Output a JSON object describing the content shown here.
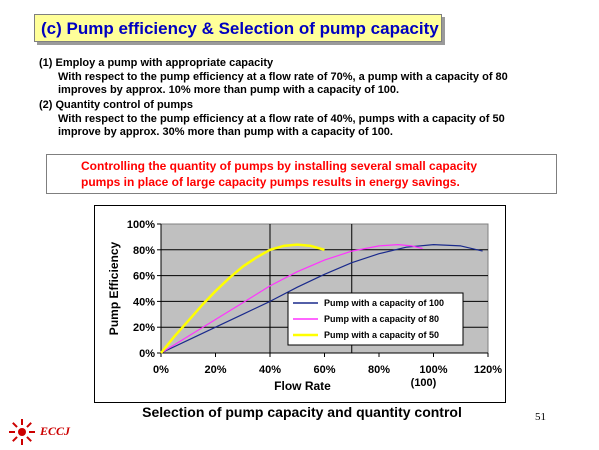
{
  "header": {
    "title": "(c) Pump efficiency & Selection of pump capacity"
  },
  "body_text": {
    "item1_heading": "(1) Employ a pump with appropriate capacity",
    "item1_line1": "With respect to the pump efficiency at a flow rate of 70%, a pump with a capacity of 80",
    "item1_line2": "improves by approx. 10% more than pump with a capacity of 100.",
    "item2_heading": "(2) Quantity control of pumps",
    "item2_line1": "With respect to the pump efficiency at a flow rate of 40%,  pumps with a capacity of 50",
    "item2_line2": "improve by approx. 30% more than pump with a capacity of 100."
  },
  "callout": {
    "line1": "Controlling the quantity of pumps by installing several small capacity",
    "line2": "pumps in place of large capacity pumps results in energy savings."
  },
  "chart_data": {
    "type": "line",
    "title": "",
    "xlabel": "Flow Rate",
    "ylabel": "Pump Efficiency",
    "xlim": [
      0,
      120
    ],
    "ylim": [
      0,
      100
    ],
    "x_ticks": [
      "0%",
      "20%",
      "40%",
      "60%",
      "80%",
      "100%",
      "120%"
    ],
    "x_tick_values": [
      0,
      20,
      40,
      60,
      80,
      100,
      120
    ],
    "x_extra_label": "(100)",
    "y_ticks": [
      "0%",
      "20%",
      "40%",
      "60%",
      "80%",
      "100%"
    ],
    "y_tick_values": [
      0,
      20,
      40,
      60,
      80,
      100
    ],
    "grid": "horizontal",
    "plot_background": "#c0c0c0",
    "vertical_markers": [
      40,
      70
    ],
    "legend_position": "lower-right",
    "series": [
      {
        "name": "Pump with a capacity of 100",
        "color": "#1a2a8c",
        "points": [
          [
            0,
            0
          ],
          [
            10,
            10
          ],
          [
            20,
            20
          ],
          [
            30,
            30
          ],
          [
            40,
            40
          ],
          [
            50,
            51
          ],
          [
            60,
            61
          ],
          [
            70,
            70
          ],
          [
            80,
            77
          ],
          [
            90,
            82
          ],
          [
            100,
            84
          ],
          [
            110,
            83
          ],
          [
            118,
            79
          ]
        ]
      },
      {
        "name": "Pump with a capacity of 80",
        "color": "#ff33ff",
        "points": [
          [
            0,
            0
          ],
          [
            10,
            13
          ],
          [
            20,
            26
          ],
          [
            30,
            39
          ],
          [
            40,
            52
          ],
          [
            50,
            63
          ],
          [
            60,
            72
          ],
          [
            70,
            79
          ],
          [
            80,
            83
          ],
          [
            87,
            84
          ],
          [
            92,
            83
          ],
          [
            96,
            81
          ]
        ]
      },
      {
        "name": "Pump with a capacity of 50",
        "color": "#ffff00",
        "points": [
          [
            0,
            0
          ],
          [
            5,
            13
          ],
          [
            10,
            25
          ],
          [
            15,
            37
          ],
          [
            20,
            48
          ],
          [
            25,
            58
          ],
          [
            30,
            67
          ],
          [
            35,
            74
          ],
          [
            40,
            80
          ],
          [
            45,
            83
          ],
          [
            50,
            84
          ],
          [
            55,
            83
          ],
          [
            60,
            80
          ]
        ]
      }
    ]
  },
  "caption": "Selection of pump capacity and quantity control",
  "footer": {
    "logo_text": "ECCJ",
    "page_number": "51"
  }
}
